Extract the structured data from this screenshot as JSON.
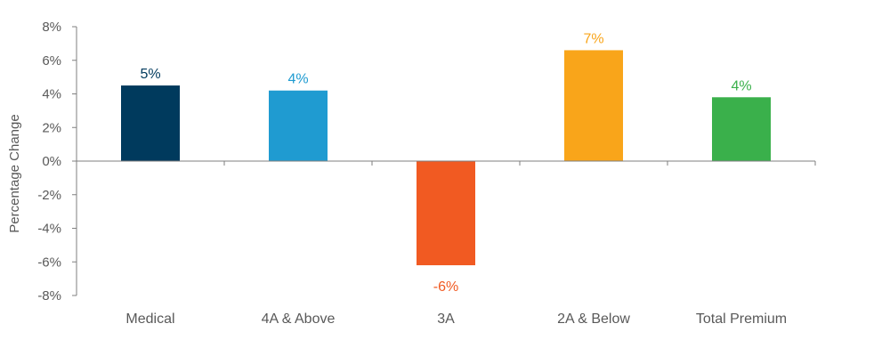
{
  "chart_data": {
    "type": "bar",
    "title": "",
    "xlabel": "",
    "ylabel": "Percentage Change",
    "ylim": [
      -8,
      8
    ],
    "yticks": [
      "8%",
      "6%",
      "4%",
      "2%",
      "0%",
      "-2%",
      "-4%",
      "-6%",
      "-8%"
    ],
    "ytick_values": [
      8,
      6,
      4,
      2,
      0,
      -2,
      -4,
      -6,
      -8
    ],
    "categories": [
      "Medical",
      "4A & Above",
      "3A",
      "2A & Below",
      "Total Premium"
    ],
    "values": [
      4.5,
      4.2,
      -6.2,
      6.6,
      3.8
    ],
    "data_labels": [
      "5%",
      "4%",
      "-6%",
      "7%",
      "4%"
    ],
    "colors": [
      "#003a5d",
      "#1f9bd1",
      "#f15a22",
      "#f9a51a",
      "#3ab04b"
    ],
    "grid": false,
    "legend": "none"
  }
}
